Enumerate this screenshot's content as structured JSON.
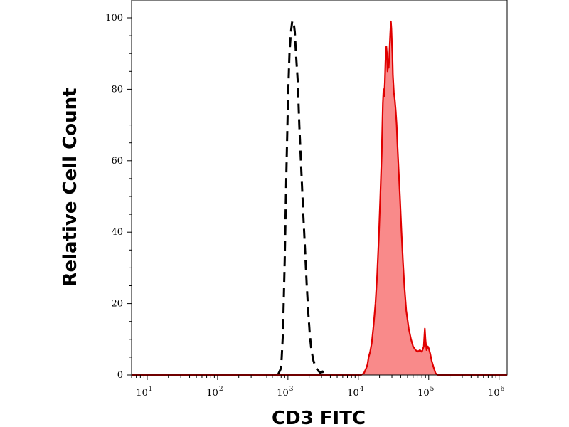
{
  "chart_data": {
    "type": "area",
    "xlabel": "CD3 FITC",
    "ylabel": "Relative Cell Count",
    "xscale": "log",
    "xlim": [
      6,
      1300000
    ],
    "ylim": [
      0,
      100
    ],
    "grid": false,
    "x_ticks": [
      {
        "value": 10,
        "base": "10",
        "exp": "1"
      },
      {
        "value": 100,
        "base": "10",
        "exp": "2"
      },
      {
        "value": 1000,
        "base": "10",
        "exp": "3"
      },
      {
        "value": 10000,
        "base": "10",
        "exp": "4"
      },
      {
        "value": 100000,
        "base": "10",
        "exp": "5"
      },
      {
        "value": 1000000,
        "base": "10",
        "exp": "6"
      }
    ],
    "y_ticks": [
      {
        "value": 0,
        "label": "0"
      },
      {
        "value": 20,
        "label": "20"
      },
      {
        "value": 40,
        "label": "40"
      },
      {
        "value": 60,
        "label": "60"
      },
      {
        "value": 80,
        "label": "80"
      },
      {
        "value": 100,
        "label": "100"
      }
    ],
    "series": [
      {
        "style": "dashed",
        "color": "#000000",
        "filled": false,
        "points": [
          [
            720,
            0
          ],
          [
            800,
            2
          ],
          [
            850,
            12
          ],
          [
            900,
            32
          ],
          [
            950,
            57
          ],
          [
            1000,
            77
          ],
          [
            1050,
            90
          ],
          [
            1100,
            96
          ],
          [
            1150,
            99
          ],
          [
            1200,
            99
          ],
          [
            1250,
            96
          ],
          [
            1300,
            90
          ],
          [
            1380,
            82
          ],
          [
            1450,
            70
          ],
          [
            1550,
            57
          ],
          [
            1650,
            45
          ],
          [
            1750,
            35
          ],
          [
            1850,
            25
          ],
          [
            1950,
            17
          ],
          [
            2050,
            11
          ],
          [
            2150,
            7
          ],
          [
            2300,
            4
          ],
          [
            2500,
            2
          ],
          [
            2700,
            1.2
          ],
          [
            2900,
            0.6
          ],
          [
            3100,
            1
          ],
          [
            3300,
            0.4
          ],
          [
            3600,
            0.1
          ],
          [
            4000,
            0
          ]
        ]
      },
      {
        "style": "solid",
        "color": "#e00000",
        "fill": "#f98a8a",
        "filled": true,
        "points": [
          [
            6,
            0
          ],
          [
            11000,
            0
          ],
          [
            12000,
            0.5
          ],
          [
            13000,
            2
          ],
          [
            13500,
            3
          ],
          [
            14000,
            5
          ],
          [
            14700,
            6.5
          ],
          [
            15500,
            9
          ],
          [
            16500,
            14
          ],
          [
            17500,
            20
          ],
          [
            18500,
            28
          ],
          [
            19500,
            38
          ],
          [
            20500,
            50
          ],
          [
            21500,
            62
          ],
          [
            22300,
            76
          ],
          [
            22800,
            80
          ],
          [
            23300,
            78
          ],
          [
            23800,
            82
          ],
          [
            24300,
            88
          ],
          [
            25000,
            92
          ],
          [
            25500,
            90
          ],
          [
            26000,
            85
          ],
          [
            26500,
            87
          ],
          [
            27000,
            86
          ],
          [
            27500,
            89
          ],
          [
            28000,
            93
          ],
          [
            28500,
            96
          ],
          [
            29000,
            99
          ],
          [
            29500,
            97
          ],
          [
            30000,
            93
          ],
          [
            30500,
            90
          ],
          [
            31000,
            84
          ],
          [
            32000,
            79
          ],
          [
            33000,
            77
          ],
          [
            34000,
            74
          ],
          [
            35000,
            70
          ],
          [
            36000,
            64
          ],
          [
            37500,
            57
          ],
          [
            39000,
            50
          ],
          [
            41000,
            40
          ],
          [
            43000,
            32
          ],
          [
            45000,
            25
          ],
          [
            48000,
            18
          ],
          [
            52000,
            13
          ],
          [
            56000,
            10
          ],
          [
            60000,
            8
          ],
          [
            65000,
            7
          ],
          [
            70000,
            6.5
          ],
          [
            75000,
            7
          ],
          [
            80000,
            6.5
          ],
          [
            85000,
            8
          ],
          [
            88000,
            13
          ],
          [
            90000,
            10
          ],
          [
            93000,
            7
          ],
          [
            97000,
            8
          ],
          [
            100000,
            7.5
          ],
          [
            105000,
            6
          ],
          [
            110000,
            4
          ],
          [
            118000,
            2
          ],
          [
            125000,
            0.5
          ],
          [
            135000,
            0
          ],
          [
            1300000,
            0
          ]
        ]
      }
    ]
  }
}
